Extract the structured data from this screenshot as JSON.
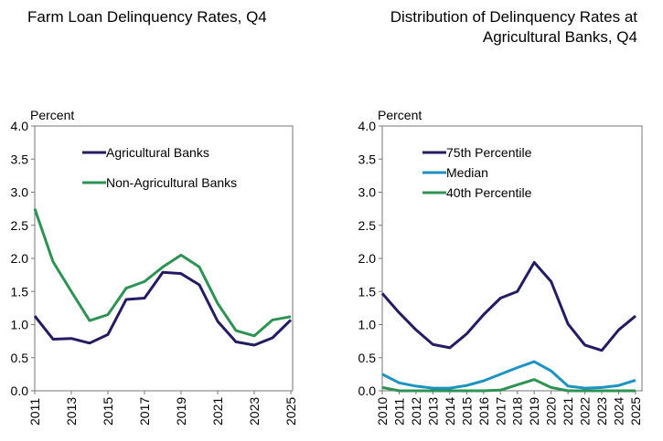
{
  "chart_data": [
    {
      "type": "line",
      "title": "Farm Loan Delinquency Rates, Q4",
      "ylabel": "Percent",
      "ylim": [
        0,
        4
      ],
      "yticks": [
        "0.0",
        "0.5",
        "1.0",
        "1.5",
        "2.0",
        "2.5",
        "3.0",
        "3.5",
        "4.0"
      ],
      "xlim": [
        2011,
        2025
      ],
      "xticks": [
        "2011",
        "2013",
        "2015",
        "2017",
        "2019",
        "2021",
        "2023",
        "2025"
      ],
      "x": [
        2011,
        2012,
        2013,
        2014,
        2015,
        2016,
        2017,
        2018,
        2019,
        2020,
        2021,
        2022,
        2023,
        2024,
        2025
      ],
      "legend": "top-center",
      "series": [
        {
          "name": "Agricultural Banks",
          "color": "#241c63",
          "values": [
            1.13,
            0.78,
            0.79,
            0.72,
            0.85,
            1.38,
            1.4,
            1.79,
            1.77,
            1.6,
            1.05,
            0.74,
            0.69,
            0.8,
            1.07
          ]
        },
        {
          "name": "Non-Agricultural Banks",
          "color": "#2e9254",
          "values": [
            2.75,
            1.95,
            1.5,
            1.06,
            1.15,
            1.55,
            1.65,
            1.87,
            2.05,
            1.87,
            1.32,
            0.91,
            0.83,
            1.07,
            1.12
          ]
        }
      ]
    },
    {
      "type": "line",
      "title": "Distribution of Delinquency Rates at Agricultural Banks, Q4",
      "ylabel": "Percent",
      "ylim": [
        0,
        4
      ],
      "yticks": [
        "0.0",
        "0.5",
        "1.0",
        "1.5",
        "2.0",
        "2.5",
        "3.0",
        "3.5",
        "4.0"
      ],
      "xlim": [
        2010,
        2025
      ],
      "xticks": [
        "2010",
        "2011",
        "2012",
        "2013",
        "2014",
        "2015",
        "2016",
        "2017",
        "2018",
        "2019",
        "2020",
        "2021",
        "2022",
        "2023",
        "2024",
        "2025"
      ],
      "x": [
        2010,
        2011,
        2012,
        2013,
        2014,
        2015,
        2016,
        2017,
        2018,
        2019,
        2020,
        2021,
        2022,
        2023,
        2024,
        2025
      ],
      "legend": "top-center",
      "series": [
        {
          "name": "75th Percentile",
          "color": "#241c63",
          "values": [
            1.47,
            1.18,
            0.92,
            0.7,
            0.65,
            0.86,
            1.15,
            1.4,
            1.5,
            1.94,
            1.65,
            1.01,
            0.69,
            0.61,
            0.92,
            1.13
          ]
        },
        {
          "name": "Median",
          "color": "#1f93c0",
          "values": [
            0.25,
            0.12,
            0.07,
            0.04,
            0.04,
            0.08,
            0.15,
            0.25,
            0.35,
            0.44,
            0.3,
            0.07,
            0.04,
            0.05,
            0.08,
            0.16
          ]
        },
        {
          "name": "40th Percentile",
          "color": "#2e9254",
          "values": [
            0.05,
            0,
            0,
            0,
            0,
            0,
            0,
            0.01,
            0.09,
            0.17,
            0.05,
            0,
            0,
            0,
            0,
            0
          ]
        }
      ]
    }
  ]
}
